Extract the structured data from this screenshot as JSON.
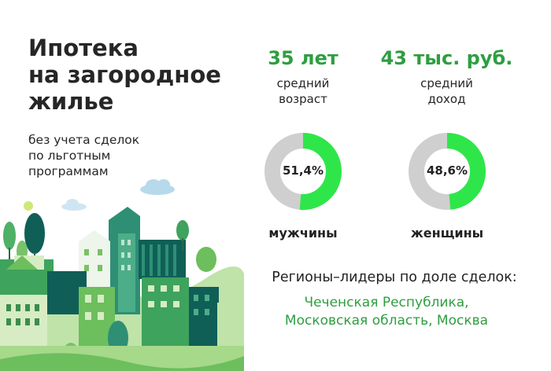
{
  "title_lines": [
    "Ипотека",
    "на загородное",
    "жилье"
  ],
  "subtitle_lines": [
    "без учета сделок",
    "по льготным",
    "программам"
  ],
  "stats": [
    {
      "value": "35 лет",
      "label_lines": [
        "средний",
        "возраст"
      ]
    },
    {
      "value": "43 тыс. руб.",
      "label_lines": [
        "средний",
        "доход"
      ]
    }
  ],
  "donuts": [
    {
      "percent_label": "51,4%",
      "share": 0.514,
      "caption": "мужчины"
    },
    {
      "percent_label": "48,6%",
      "share": 0.486,
      "caption": "женщины"
    }
  ],
  "regions": {
    "heading": "Регионы–лидеры по доле сделок:",
    "lines": [
      "Чеченская Республика,",
      "Московская область, Москва"
    ]
  },
  "colors": {
    "accent": "#2f9e41",
    "donut_fill": "#2ee64a",
    "donut_track": "#cfcfcf"
  }
}
